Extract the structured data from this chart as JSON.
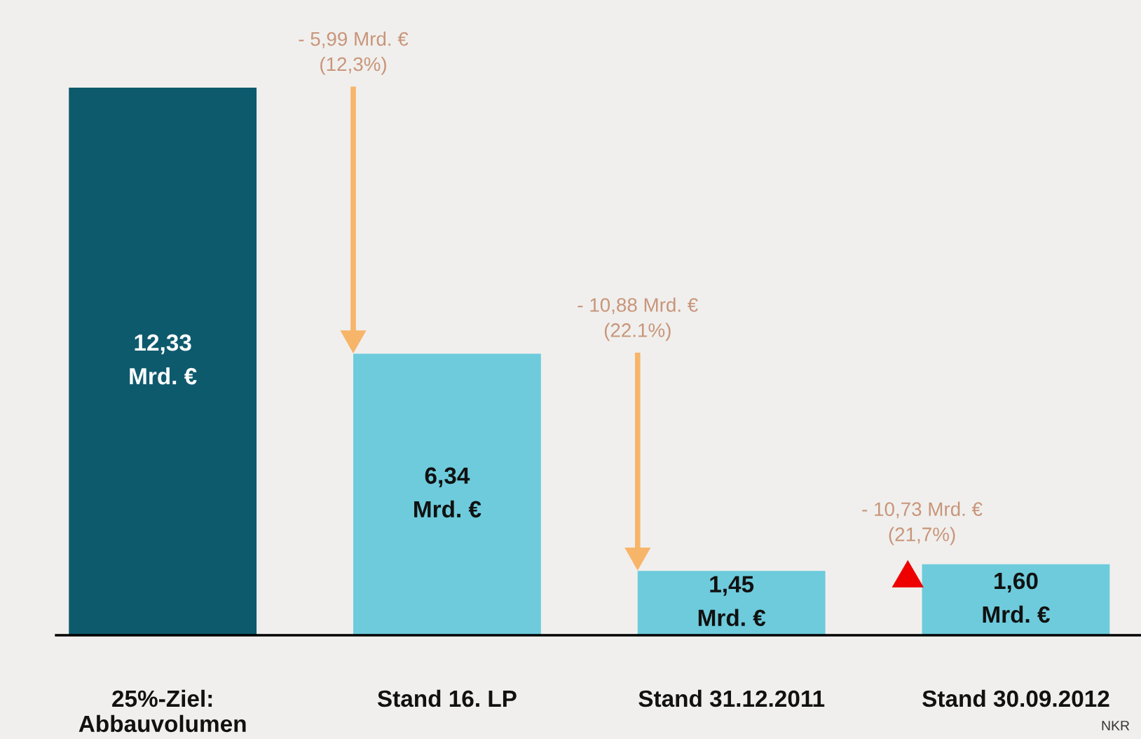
{
  "chart_data": {
    "type": "bar",
    "categories": [
      "25%-Ziel:\nAbbauvolumen",
      "Stand 16. LP",
      "Stand 31.12.2011",
      "Stand 30.09.2012"
    ],
    "values": [
      12.33,
      6.34,
      1.45,
      1.6
    ],
    "colors": [
      "#0e5a6d",
      "#6dcbdc",
      "#6dcbdc",
      "#6dcbdc"
    ],
    "value_labels": [
      "12,33\nMrd. €",
      "6,34\nMrd. €",
      "1,45\nMrd. €",
      "1,60\nMrd. €"
    ],
    "annotations": [
      "- 5,99 Mrd. €\n(12,3%)",
      "- 10,88 Mrd. €\n(22.1%)",
      "- 10,73 Mrd. €\n(21,7%)",
      "NKR"
    ],
    "grid": false
  }
}
